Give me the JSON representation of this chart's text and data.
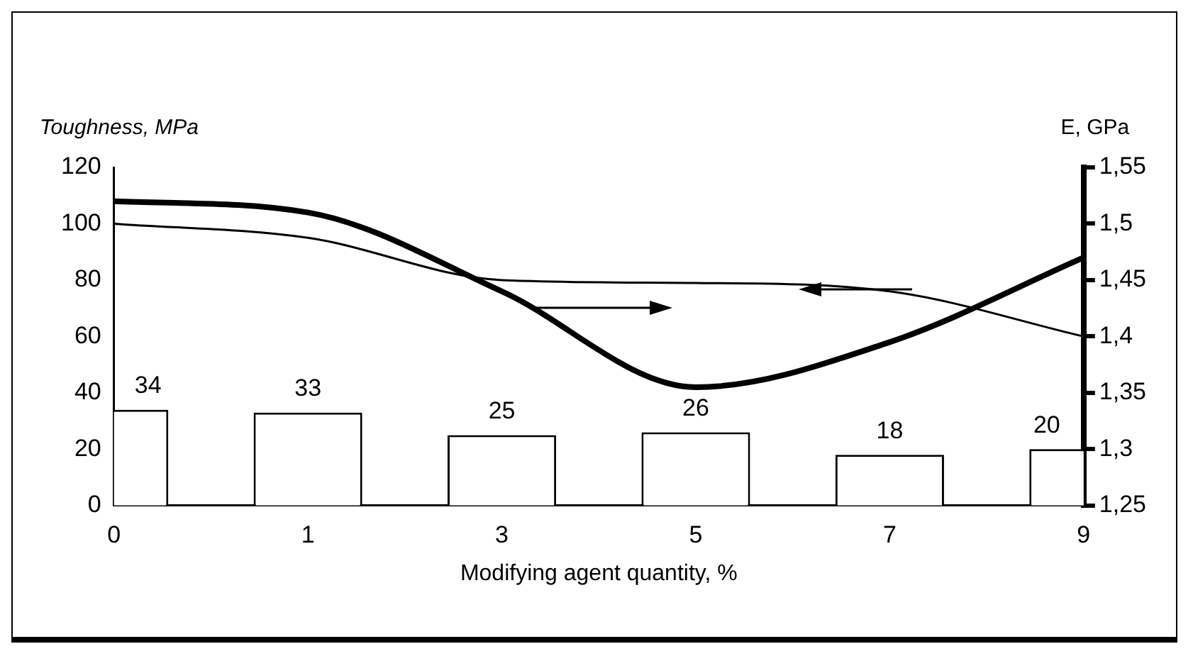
{
  "chart_data": {
    "type": "bar",
    "xlabel": "Modifying agent quantity, %",
    "ylabel": "Toughness, MPa",
    "y2label": "E, GPa",
    "categories": [
      "0",
      "1",
      "3",
      "5",
      "7",
      "9"
    ],
    "series": [
      {
        "color": "#ffffff",
        "values": [
          34,
          33,
          25,
          26,
          18,
          20
        ],
        "value_labels": [
          "34",
          "33",
          "25",
          "26",
          "18",
          "20"
        ]
      },
      {
        "type": "line",
        "color": "#000000",
        "values": [
          100,
          95,
          80,
          79,
          76,
          60
        ]
      },
      {
        "type": "line",
        "axis": "y2",
        "color": "#000000",
        "values": [
          1.52,
          1.51,
          1.44,
          1.355,
          1.395,
          1.47
        ]
      }
    ],
    "ylim": [
      0,
      120
    ],
    "yticks": [
      0,
      20,
      40,
      60,
      80,
      100,
      120
    ],
    "y2lim": [
      1.25,
      1.55
    ],
    "y2ticks": [
      {
        "value": 1.25,
        "label": "1,25"
      },
      {
        "value": 1.3,
        "label": "1,3"
      },
      {
        "value": 1.35,
        "label": "1,35"
      },
      {
        "value": 1.4,
        "label": "1,4"
      },
      {
        "value": 1.45,
        "label": "1,45"
      },
      {
        "value": 1.5,
        "label": "1,5"
      },
      {
        "value": 1.55,
        "label": "1,55"
      }
    ],
    "grid": false,
    "legend": false,
    "marker": "none"
  }
}
